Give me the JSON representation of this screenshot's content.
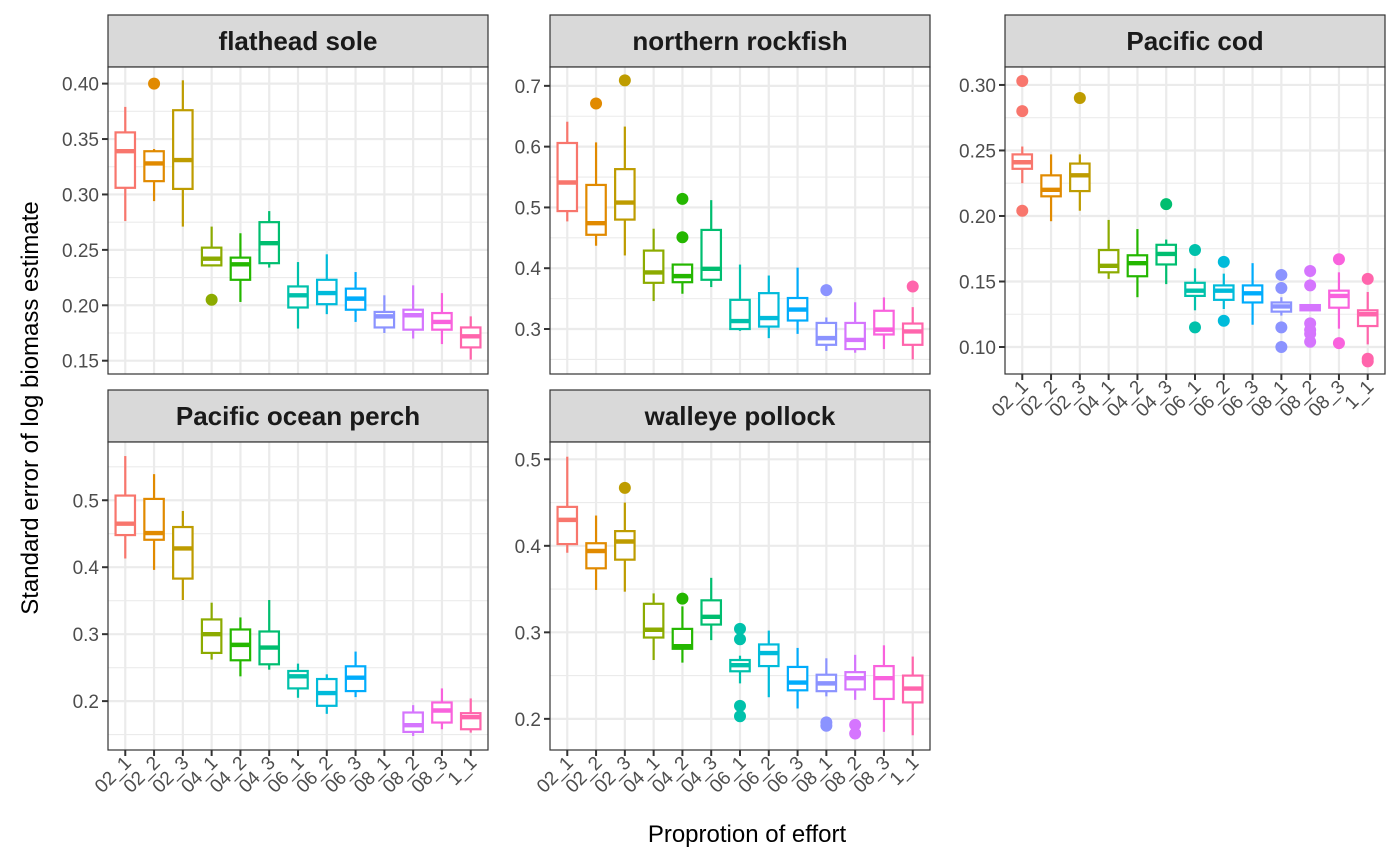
{
  "chart_data": {
    "type": "boxplot",
    "xlabel": "Proprotion of effort",
    "ylabel": "Standard error of log biomass estimate",
    "categories": [
      "02_1",
      "02_2",
      "02_3",
      "04_1",
      "04_2",
      "04_3",
      "06_1",
      "06_2",
      "06_3",
      "08_1",
      "08_2",
      "08_3",
      "1_1"
    ],
    "colors": [
      "#F8766D",
      "#E18A00",
      "#BE9C00",
      "#8CAB00",
      "#24B700",
      "#00BE70",
      "#00C1AB",
      "#00BBDA",
      "#00ACFC",
      "#8B93FF",
      "#D575FE",
      "#F962DD",
      "#FF65AC"
    ],
    "grid": true,
    "legend": "none",
    "panels": [
      {
        "title": "flathead sole",
        "ylim": [
          0.138,
          0.415
        ],
        "yticks": [
          0.15,
          0.2,
          0.25,
          0.3,
          0.35,
          0.4
        ],
        "ytick_labels": [
          "0.15",
          "0.20",
          "0.25",
          "0.30",
          "0.35",
          "0.40"
        ],
        "show_x_labels": false,
        "boxes": [
          {
            "cat": "02_1",
            "low": 0.276,
            "q1": 0.306,
            "median": 0.339,
            "q3": 0.356,
            "high": 0.379,
            "outliers": []
          },
          {
            "cat": "02_2",
            "low": 0.294,
            "q1": 0.312,
            "median": 0.328,
            "q3": 0.339,
            "high": 0.341,
            "outliers": [
              0.4
            ]
          },
          {
            "cat": "02_3",
            "low": 0.271,
            "q1": 0.305,
            "median": 0.331,
            "q3": 0.376,
            "high": 0.403,
            "outliers": []
          },
          {
            "cat": "04_1",
            "low": 0.235,
            "q1": 0.236,
            "median": 0.242,
            "q3": 0.252,
            "high": 0.271,
            "outliers": [
              0.205
            ]
          },
          {
            "cat": "04_2",
            "low": 0.203,
            "q1": 0.223,
            "median": 0.237,
            "q3": 0.243,
            "high": 0.265,
            "outliers": []
          },
          {
            "cat": "04_3",
            "low": 0.234,
            "q1": 0.238,
            "median": 0.256,
            "q3": 0.275,
            "high": 0.285,
            "outliers": []
          },
          {
            "cat": "06_1",
            "low": 0.179,
            "q1": 0.198,
            "median": 0.209,
            "q3": 0.217,
            "high": 0.239,
            "outliers": []
          },
          {
            "cat": "06_2",
            "low": 0.192,
            "q1": 0.201,
            "median": 0.211,
            "q3": 0.223,
            "high": 0.246,
            "outliers": []
          },
          {
            "cat": "06_3",
            "low": 0.185,
            "q1": 0.196,
            "median": 0.206,
            "q3": 0.215,
            "high": 0.23,
            "outliers": []
          },
          {
            "cat": "08_1",
            "low": 0.175,
            "q1": 0.18,
            "median": 0.19,
            "q3": 0.194,
            "high": 0.209,
            "outliers": []
          },
          {
            "cat": "08_2",
            "low": 0.17,
            "q1": 0.178,
            "median": 0.191,
            "q3": 0.196,
            "high": 0.218,
            "outliers": []
          },
          {
            "cat": "08_3",
            "low": 0.165,
            "q1": 0.178,
            "median": 0.185,
            "q3": 0.193,
            "high": 0.211,
            "outliers": []
          },
          {
            "cat": "1_1",
            "low": 0.151,
            "q1": 0.162,
            "median": 0.172,
            "q3": 0.18,
            "high": 0.19,
            "outliers": []
          }
        ]
      },
      {
        "title": "northern rockfish",
        "ylim": [
          0.226,
          0.731
        ],
        "yticks": [
          0.3,
          0.4,
          0.5,
          0.6,
          0.7
        ],
        "ytick_labels": [
          "0.3",
          "0.4",
          "0.5",
          "0.6",
          "0.7"
        ],
        "show_x_labels": false,
        "boxes": [
          {
            "cat": "02_1",
            "low": 0.477,
            "q1": 0.494,
            "median": 0.541,
            "q3": 0.606,
            "high": 0.641,
            "outliers": []
          },
          {
            "cat": "02_2",
            "low": 0.437,
            "q1": 0.455,
            "median": 0.474,
            "q3": 0.537,
            "high": 0.607,
            "outliers": [
              0.671
            ]
          },
          {
            "cat": "02_3",
            "low": 0.421,
            "q1": 0.48,
            "median": 0.508,
            "q3": 0.563,
            "high": 0.633,
            "outliers": [
              0.709
            ]
          },
          {
            "cat": "04_1",
            "low": 0.346,
            "q1": 0.376,
            "median": 0.393,
            "q3": 0.429,
            "high": 0.465,
            "outliers": []
          },
          {
            "cat": "04_2",
            "low": 0.358,
            "q1": 0.377,
            "median": 0.387,
            "q3": 0.406,
            "high": 0.406,
            "outliers": [
              0.451,
              0.514
            ]
          },
          {
            "cat": "04_3",
            "low": 0.369,
            "q1": 0.381,
            "median": 0.399,
            "q3": 0.463,
            "high": 0.512,
            "outliers": []
          },
          {
            "cat": "06_1",
            "low": 0.297,
            "q1": 0.3,
            "median": 0.313,
            "q3": 0.348,
            "high": 0.406,
            "outliers": []
          },
          {
            "cat": "06_2",
            "low": 0.285,
            "q1": 0.304,
            "median": 0.318,
            "q3": 0.359,
            "high": 0.388,
            "outliers": []
          },
          {
            "cat": "06_3",
            "low": 0.292,
            "q1": 0.314,
            "median": 0.332,
            "q3": 0.351,
            "high": 0.401,
            "outliers": []
          },
          {
            "cat": "08_1",
            "low": 0.264,
            "q1": 0.274,
            "median": 0.285,
            "q3": 0.31,
            "high": 0.319,
            "outliers": [
              0.364
            ]
          },
          {
            "cat": "08_2",
            "low": 0.261,
            "q1": 0.267,
            "median": 0.282,
            "q3": 0.31,
            "high": 0.344,
            "outliers": []
          },
          {
            "cat": "08_3",
            "low": 0.267,
            "q1": 0.291,
            "median": 0.299,
            "q3": 0.33,
            "high": 0.352,
            "outliers": []
          },
          {
            "cat": "1_1",
            "low": 0.25,
            "q1": 0.274,
            "median": 0.296,
            "q3": 0.309,
            "high": 0.336,
            "outliers": [
              0.37
            ]
          }
        ]
      },
      {
        "title": "Pacific cod",
        "ylim": [
          0.0794,
          0.3137
        ],
        "yticks": [
          0.1,
          0.15,
          0.2,
          0.25,
          0.3
        ],
        "ytick_labels": [
          "0.10",
          "0.15",
          "0.20",
          "0.25",
          "0.30"
        ],
        "show_x_labels": true,
        "boxes": [
          {
            "cat": "02_1",
            "low": 0.225,
            "q1": 0.236,
            "median": 0.241,
            "q3": 0.247,
            "high": 0.253,
            "outliers": [
              0.204,
              0.28,
              0.303
            ]
          },
          {
            "cat": "02_2",
            "low": 0.196,
            "q1": 0.215,
            "median": 0.22,
            "q3": 0.231,
            "high": 0.247,
            "outliers": []
          },
          {
            "cat": "02_3",
            "low": 0.204,
            "q1": 0.219,
            "median": 0.231,
            "q3": 0.24,
            "high": 0.247,
            "outliers": [
              0.29
            ]
          },
          {
            "cat": "04_1",
            "low": 0.152,
            "q1": 0.157,
            "median": 0.162,
            "q3": 0.174,
            "high": 0.197,
            "outliers": []
          },
          {
            "cat": "04_2",
            "low": 0.138,
            "q1": 0.154,
            "median": 0.164,
            "q3": 0.17,
            "high": 0.19,
            "outliers": []
          },
          {
            "cat": "04_3",
            "low": 0.148,
            "q1": 0.163,
            "median": 0.171,
            "q3": 0.178,
            "high": 0.182,
            "outliers": [
              0.209
            ]
          },
          {
            "cat": "06_1",
            "low": 0.128,
            "q1": 0.139,
            "median": 0.143,
            "q3": 0.149,
            "high": 0.16,
            "outliers": [
              0.115,
              0.174
            ]
          },
          {
            "cat": "06_2",
            "low": 0.129,
            "q1": 0.136,
            "median": 0.143,
            "q3": 0.147,
            "high": 0.156,
            "outliers": [
              0.12,
              0.165
            ]
          },
          {
            "cat": "06_3",
            "low": 0.117,
            "q1": 0.134,
            "median": 0.141,
            "q3": 0.147,
            "high": 0.164,
            "outliers": []
          },
          {
            "cat": "08_1",
            "low": 0.124,
            "q1": 0.127,
            "median": 0.131,
            "q3": 0.134,
            "high": 0.138,
            "outliers": [
              0.1,
              0.115,
              0.145,
              0.155
            ]
          },
          {
            "cat": "08_2",
            "low": 0.128,
            "q1": 0.128,
            "median": 0.13,
            "q3": 0.132,
            "high": 0.132,
            "outliers": [
              0.104,
              0.11,
              0.113,
              0.118,
              0.147,
              0.158
            ]
          },
          {
            "cat": "08_3",
            "low": 0.114,
            "q1": 0.13,
            "median": 0.139,
            "q3": 0.143,
            "high": 0.157,
            "outliers": [
              0.103,
              0.167
            ]
          },
          {
            "cat": "1_1",
            "low": 0.102,
            "q1": 0.116,
            "median": 0.125,
            "q3": 0.128,
            "high": 0.142,
            "outliers": [
              0.089,
              0.091,
              0.152
            ]
          }
        ]
      },
      {
        "title": "Pacific ocean perch",
        "ylim": [
          0.127,
          0.587
        ],
        "yticks": [
          0.2,
          0.3,
          0.4,
          0.5
        ],
        "ytick_labels": [
          "0.2",
          "0.3",
          "0.4",
          "0.5"
        ],
        "show_x_labels": true,
        "boxes": [
          {
            "cat": "02_1",
            "low": 0.413,
            "q1": 0.448,
            "median": 0.465,
            "q3": 0.507,
            "high": 0.566,
            "outliers": []
          },
          {
            "cat": "02_2",
            "low": 0.396,
            "q1": 0.441,
            "median": 0.451,
            "q3": 0.502,
            "high": 0.539,
            "outliers": []
          },
          {
            "cat": "02_3",
            "low": 0.351,
            "q1": 0.383,
            "median": 0.428,
            "q3": 0.46,
            "high": 0.484,
            "outliers": []
          },
          {
            "cat": "04_1",
            "low": 0.262,
            "q1": 0.272,
            "median": 0.3,
            "q3": 0.322,
            "high": 0.347,
            "outliers": []
          },
          {
            "cat": "04_2",
            "low": 0.237,
            "q1": 0.261,
            "median": 0.284,
            "q3": 0.307,
            "high": 0.325,
            "outliers": []
          },
          {
            "cat": "04_3",
            "low": 0.247,
            "q1": 0.255,
            "median": 0.28,
            "q3": 0.304,
            "high": 0.351,
            "outliers": []
          },
          {
            "cat": "06_1",
            "low": 0.205,
            "q1": 0.219,
            "median": 0.237,
            "q3": 0.245,
            "high": 0.256,
            "outliers": []
          },
          {
            "cat": "06_2",
            "low": 0.181,
            "q1": 0.193,
            "median": 0.212,
            "q3": 0.233,
            "high": 0.24,
            "outliers": []
          },
          {
            "cat": "06_3",
            "low": 0.206,
            "q1": 0.215,
            "median": 0.235,
            "q3": 0.252,
            "high": 0.274,
            "outliers": []
          },
          null,
          {
            "cat": "08_2",
            "low": 0.148,
            "q1": 0.154,
            "median": 0.164,
            "q3": 0.183,
            "high": 0.194,
            "outliers": []
          },
          {
            "cat": "08_3",
            "low": 0.158,
            "q1": 0.168,
            "median": 0.186,
            "q3": 0.198,
            "high": 0.219,
            "outliers": []
          },
          {
            "cat": "1_1",
            "low": 0.153,
            "q1": 0.158,
            "median": 0.176,
            "q3": 0.182,
            "high": 0.204,
            "outliers": []
          }
        ]
      },
      {
        "title": "walleye pollock",
        "ylim": [
          0.164,
          0.52
        ],
        "yticks": [
          0.2,
          0.3,
          0.4,
          0.5
        ],
        "ytick_labels": [
          "0.2",
          "0.3",
          "0.4",
          "0.5"
        ],
        "show_x_labels": true,
        "boxes": [
          {
            "cat": "02_1",
            "low": 0.392,
            "q1": 0.402,
            "median": 0.43,
            "q3": 0.445,
            "high": 0.503,
            "outliers": []
          },
          {
            "cat": "02_2",
            "low": 0.349,
            "q1": 0.374,
            "median": 0.394,
            "q3": 0.403,
            "high": 0.435,
            "outliers": []
          },
          {
            "cat": "02_3",
            "low": 0.347,
            "q1": 0.384,
            "median": 0.405,
            "q3": 0.417,
            "high": 0.45,
            "outliers": [
              0.467
            ]
          },
          {
            "cat": "04_1",
            "low": 0.268,
            "q1": 0.294,
            "median": 0.303,
            "q3": 0.333,
            "high": 0.345,
            "outliers": []
          },
          {
            "cat": "04_2",
            "low": 0.265,
            "q1": 0.281,
            "median": 0.284,
            "q3": 0.304,
            "high": 0.33,
            "outliers": [
              0.339
            ]
          },
          {
            "cat": "04_3",
            "low": 0.291,
            "q1": 0.309,
            "median": 0.318,
            "q3": 0.337,
            "high": 0.363,
            "outliers": []
          },
          {
            "cat": "06_1",
            "low": 0.241,
            "q1": 0.255,
            "median": 0.262,
            "q3": 0.268,
            "high": 0.273,
            "outliers": [
              0.203,
              0.215,
              0.292,
              0.304
            ]
          },
          {
            "cat": "06_2",
            "low": 0.225,
            "q1": 0.261,
            "median": 0.276,
            "q3": 0.286,
            "high": 0.302,
            "outliers": []
          },
          {
            "cat": "06_3",
            "low": 0.212,
            "q1": 0.233,
            "median": 0.242,
            "q3": 0.26,
            "high": 0.282,
            "outliers": []
          },
          {
            "cat": "08_1",
            "low": 0.226,
            "q1": 0.232,
            "median": 0.241,
            "q3": 0.251,
            "high": 0.27,
            "outliers": [
              0.192,
              0.196
            ]
          },
          {
            "cat": "08_2",
            "low": 0.222,
            "q1": 0.234,
            "median": 0.247,
            "q3": 0.254,
            "high": 0.274,
            "outliers": [
              0.183,
              0.193
            ]
          },
          {
            "cat": "08_3",
            "low": 0.185,
            "q1": 0.223,
            "median": 0.247,
            "q3": 0.261,
            "high": 0.285,
            "outliers": []
          },
          {
            "cat": "1_1",
            "low": 0.181,
            "q1": 0.219,
            "median": 0.235,
            "q3": 0.25,
            "high": 0.272,
            "outliers": []
          }
        ]
      }
    ]
  }
}
